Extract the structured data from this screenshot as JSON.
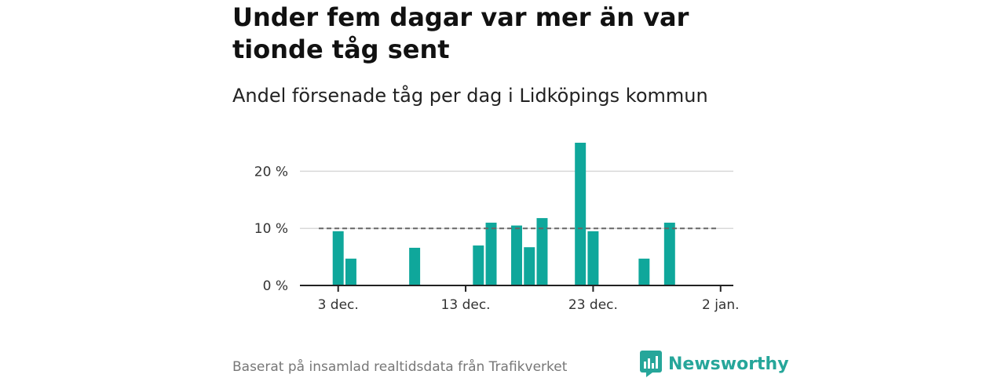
{
  "title": "Under fem dagar var mer än var tionde tåg sent",
  "subtitle": "Andel försenade tåg per dag i Lidköpings kommun",
  "footer": "Baserat på insamlad realtidsdata från Trafikverket",
  "brand": {
    "name": "Newsworthy",
    "icon": "newsworthy-logo-icon",
    "color": "#26a69a"
  },
  "colors": {
    "bar": "#0fa79b",
    "reference_line": "#666666",
    "grid": "#d9d9d9",
    "axis": "#222222"
  },
  "chart_data": {
    "type": "bar",
    "x_unit": "date",
    "xlim": [
      "2023-11-30",
      "2024-01-03"
    ],
    "ylim": [
      0,
      25
    ],
    "yticks": [
      0,
      10,
      20
    ],
    "ytick_labels": [
      "0 %",
      "10 %",
      "20 %"
    ],
    "xticks": [
      "2023-12-03",
      "2023-12-13",
      "2023-12-23",
      "2024-01-02"
    ],
    "xtick_labels": [
      "3 dec.",
      "13 dec.",
      "23 dec.",
      "2 jan."
    ],
    "grid": true,
    "reference_line": 10,
    "points": [
      {
        "x": "2023-12-03",
        "y": 9.5
      },
      {
        "x": "2023-12-04",
        "y": 4.7
      },
      {
        "x": "2023-12-09",
        "y": 6.6
      },
      {
        "x": "2023-12-14",
        "y": 7.0
      },
      {
        "x": "2023-12-15",
        "y": 11.0
      },
      {
        "x": "2023-12-17",
        "y": 10.5
      },
      {
        "x": "2023-12-18",
        "y": 6.7
      },
      {
        "x": "2023-12-19",
        "y": 11.8
      },
      {
        "x": "2023-12-22",
        "y": 25.0
      },
      {
        "x": "2023-12-23",
        "y": 9.5
      },
      {
        "x": "2023-12-27",
        "y": 4.7
      },
      {
        "x": "2023-12-29",
        "y": 11.0
      }
    ]
  }
}
